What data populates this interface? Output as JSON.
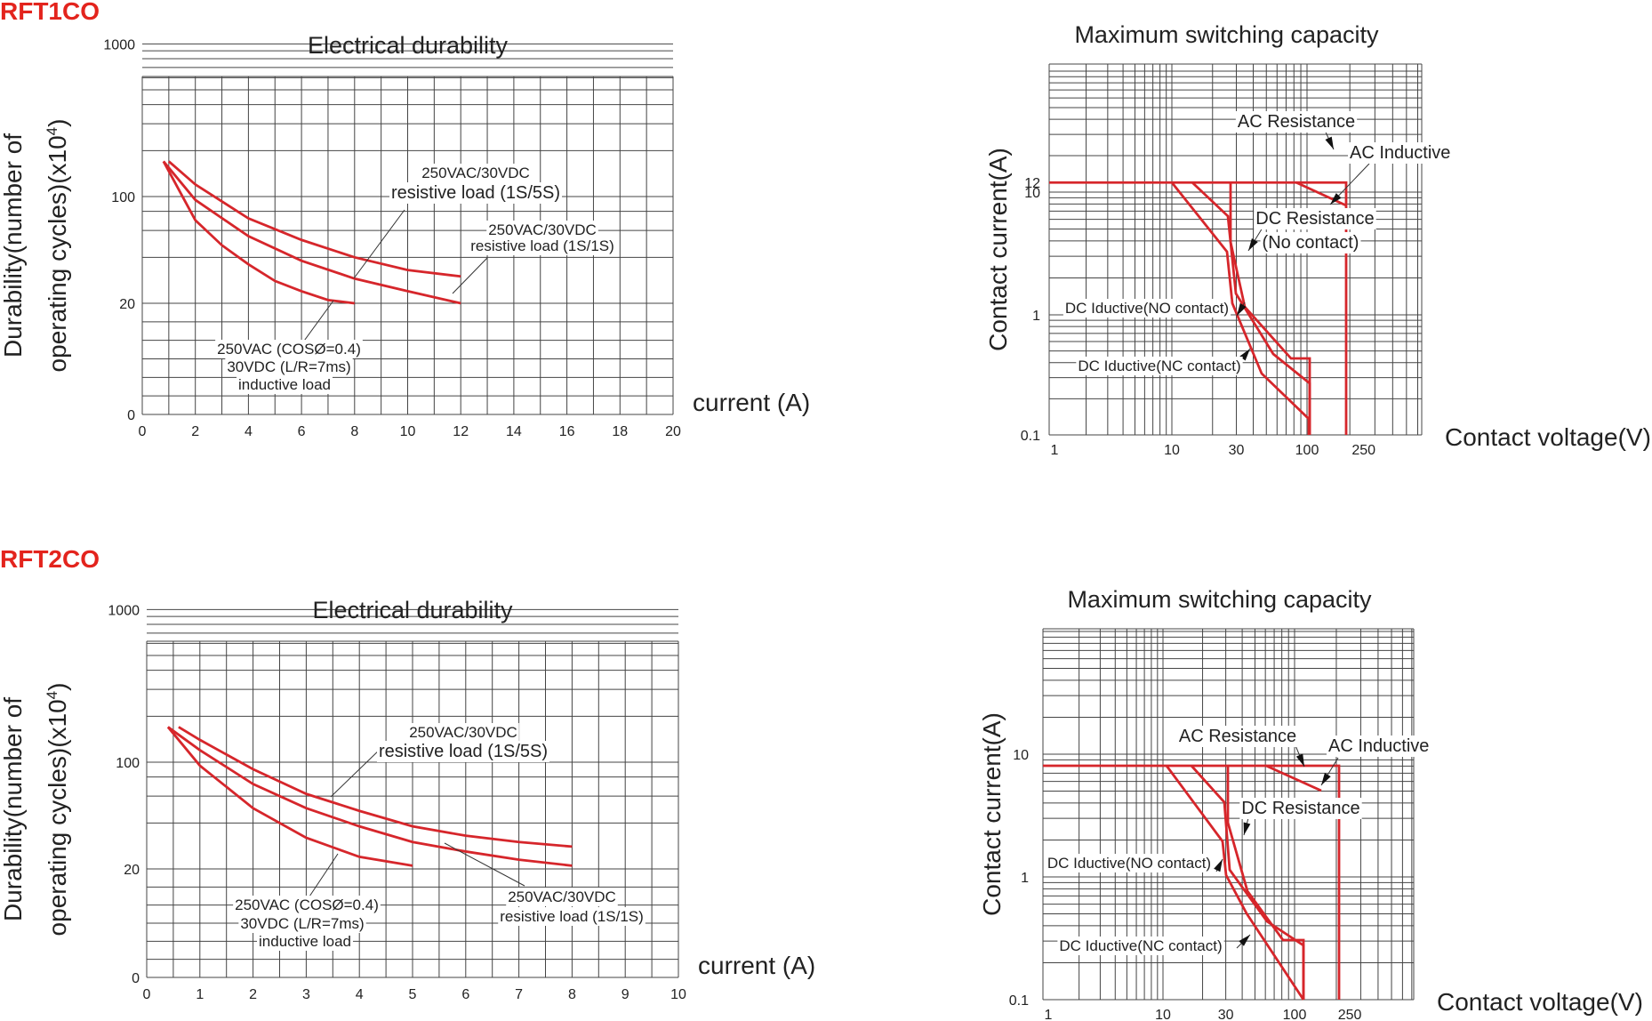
{
  "sections": [
    "RFT1CO",
    "RFT2CO"
  ],
  "chart_data": [
    {
      "section": "RFT1CO",
      "type": "line",
      "title": "Electrical durability",
      "ylabel_line1": "Durability(number of",
      "ylabel_line2": "operating cycles)(x10",
      "ylabel_sup": "4",
      "ylabel_close": ")",
      "xlabel": "current (A)",
      "x_ticks": [
        "0",
        "2",
        "4",
        "6",
        "8",
        "10",
        "12",
        "14",
        "16",
        "18",
        "20"
      ],
      "y_ticks": [
        "1000",
        "100",
        "20",
        "0"
      ],
      "xlim": [
        0,
        20
      ],
      "series": [
        {
          "x": [
            1,
            2,
            4,
            6,
            8,
            10,
            12
          ],
          "y": [
            170,
            120,
            72,
            52,
            40,
            33,
            30
          ]
        },
        {
          "x": [
            0.8,
            2,
            4,
            6,
            8,
            10,
            12
          ],
          "y": [
            170,
            95,
            55,
            38,
            29,
            24,
            20
          ]
        },
        {
          "x": [
            0.8,
            2,
            3,
            4,
            5,
            6,
            7,
            8
          ],
          "y": [
            170,
            70,
            48,
            36,
            28,
            24,
            21,
            20
          ]
        }
      ],
      "annotations": [
        {
          "lines": [
            "250VAC/30VDC",
            "resistive load (1S/5S)"
          ]
        },
        {
          "lines": [
            "250VAC/30VDC",
            "resistive load (1S/1S)"
          ]
        },
        {
          "lines": [
            "250VAC (COSØ=0.4)",
            "30VDC (L/R=7ms)",
            "inductive load"
          ]
        }
      ]
    },
    {
      "section": "RFT1CO",
      "type": "line",
      "title": "Maximum switching capacity",
      "ylabel": "Contact current(A)",
      "xlabel": "Contact voltage(V)",
      "x_ticks": [
        "1",
        "10",
        "30",
        "100",
        "250"
      ],
      "y_ticks": [
        "12",
        "10",
        "1",
        "0.1"
      ],
      "log_x": true,
      "log_y": true,
      "annotations": [
        "AC Resistance",
        "AC Inductive",
        "DC Resistance",
        "(No contact)",
        "DC Iductive(NO contact)",
        "DC Iductive(NC contact)"
      ]
    },
    {
      "section": "RFT2CO",
      "type": "line",
      "title": "Electrical durability",
      "ylabel_line1": "Durability(number of",
      "ylabel_line2": "operating cycles)(x10",
      "ylabel_sup": "4",
      "ylabel_close": ")",
      "xlabel": "current (A)",
      "x_ticks": [
        "0",
        "1",
        "2",
        "3",
        "4",
        "5",
        "6",
        "7",
        "8",
        "9",
        "10"
      ],
      "y_ticks": [
        "1000",
        "100",
        "20",
        "0"
      ],
      "xlim": [
        0,
        10
      ],
      "series": [
        {
          "x": [
            0.6,
            1,
            2,
            3,
            4,
            5,
            6,
            7,
            8
          ],
          "y": [
            170,
            140,
            90,
            62,
            48,
            38,
            33,
            30,
            28
          ]
        },
        {
          "x": [
            0.4,
            1,
            2,
            3,
            4,
            5,
            6,
            7,
            8
          ],
          "y": [
            170,
            120,
            72,
            50,
            38,
            30,
            26,
            23,
            21
          ]
        },
        {
          "x": [
            0.4,
            1,
            2,
            3,
            4,
            5
          ],
          "y": [
            170,
            95,
            50,
            32,
            24,
            21
          ]
        }
      ],
      "annotations": [
        {
          "lines": [
            "250VAC/30VDC",
            "resistive load (1S/5S)"
          ]
        },
        {
          "lines": [
            "250VAC/30VDC",
            "resistive load (1S/1S)"
          ]
        },
        {
          "lines": [
            "250VAC (COSØ=0.4)",
            "30VDC (L/R=7ms)",
            "inductive load"
          ]
        }
      ]
    },
    {
      "section": "RFT2CO",
      "type": "line",
      "title": "Maximum switching capacity",
      "ylabel": "Contact current(A)",
      "xlabel": "Contact voltage(V)",
      "x_ticks": [
        "1",
        "10",
        "30",
        "100",
        "250"
      ],
      "y_ticks": [
        "10",
        "1",
        "0.1"
      ],
      "log_x": true,
      "log_y": true,
      "annotations": [
        "AC Resistance",
        "AC Inductive",
        "DC Resistance",
        "DC Iductive(NO contact)",
        "DC Iductive(NC contact)"
      ]
    }
  ]
}
